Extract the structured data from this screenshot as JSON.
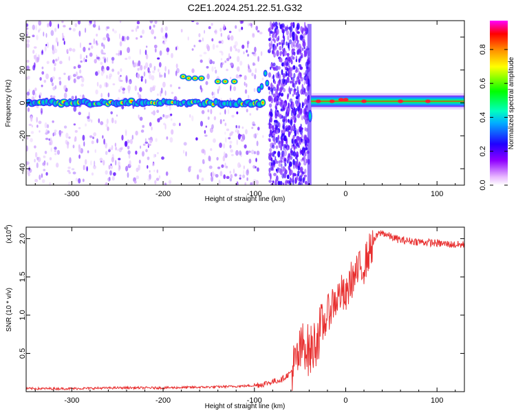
{
  "title": "C2E1.2024.251.22.51.G32",
  "colorbar": {
    "label": "Normalized spectral amplitude",
    "ticks": [
      0.0,
      0.2,
      0.4,
      0.6,
      0.8
    ],
    "tick_labels": [
      "0.0",
      "0.2",
      "0.4",
      "0.6",
      "0.8"
    ],
    "range": [
      0.0,
      0.97
    ],
    "colors": [
      "#ffffff",
      "#e8b8ff",
      "#9000ff",
      "#2000ff",
      "#00b0ff",
      "#00ffc0",
      "#00ff00",
      "#ffff00",
      "#ff9000",
      "#ff0000",
      "#ff00ff"
    ]
  },
  "chart_data": [
    {
      "type": "heatmap",
      "xlabel": "Height of straight line (km)",
      "ylabel": "Frequency (Hz)",
      "xlim": [
        -350,
        130
      ],
      "ylim": [
        -50,
        50
      ],
      "xticks": [
        -300,
        -200,
        -100,
        0,
        100
      ],
      "xtick_labels": [
        "-300",
        "-200",
        "-100",
        "0",
        "100"
      ],
      "yticks": [
        -40,
        -20,
        0,
        20,
        40
      ],
      "ytick_labels": [
        "-40",
        "-20",
        "0",
        "20",
        "40"
      ],
      "features": [
        {
          "name": "",
          "x_range": [
            -350,
            -90
          ],
          "frequency": 0,
          "amplitude": 0.5
        },
        {
          "name": "",
          "x_range": [
            -180,
            -150
          ],
          "frequency": 15,
          "amplitude": 0.9
        },
        {
          "name": "",
          "x_range": [
            -85,
            -40
          ],
          "frequency_range": [
            -50,
            48
          ],
          "amplitude": 0.25
        },
        {
          "name": "",
          "x_range": [
            -40,
            130
          ],
          "frequency": 1,
          "amplitude": 0.85
        }
      ]
    },
    {
      "type": "line",
      "xlabel": "Height of straight line (km)",
      "ylabel": "SNR (10 * v/v)",
      "yscale_label": "(x10",
      "yscale_exp": "4",
      "yscale_close": ")",
      "xlim": [
        -350,
        130
      ],
      "ylim": [
        0,
        2.15
      ],
      "xticks": [
        -300,
        -200,
        -100,
        0,
        100
      ],
      "xtick_labels": [
        "-300",
        "-200",
        "-100",
        "0",
        "100"
      ],
      "yticks": [
        0.5,
        1.0,
        1.5,
        2.0
      ],
      "ytick_labels": [
        "0.5",
        "1.0",
        "1.5",
        "2.0"
      ],
      "color": "#e83030",
      "series": [
        {
          "name": "",
          "x": [
            -350,
            -300,
            -250,
            -200,
            -150,
            -120,
            -100,
            -90,
            -80,
            -70,
            -60,
            -55,
            -50,
            -45,
            -40,
            -35,
            -30,
            -25,
            -20,
            -15,
            -10,
            -5,
            0,
            5,
            10,
            15,
            20,
            25,
            30,
            35,
            40,
            45,
            50,
            60,
            70,
            80,
            90,
            100,
            110,
            120,
            130
          ],
          "y": [
            0.04,
            0.04,
            0.05,
            0.05,
            0.06,
            0.07,
            0.08,
            0.1,
            0.13,
            0.16,
            0.25,
            0.35,
            0.5,
            0.65,
            0.5,
            0.6,
            0.75,
            0.85,
            1.0,
            1.15,
            1.2,
            1.3,
            1.2,
            1.45,
            1.5,
            1.6,
            1.65,
            1.8,
            1.95,
            2.05,
            2.08,
            2.05,
            2.02,
            1.98,
            1.97,
            1.96,
            1.95,
            1.94,
            1.93,
            1.92,
            1.92
          ]
        }
      ]
    }
  ]
}
